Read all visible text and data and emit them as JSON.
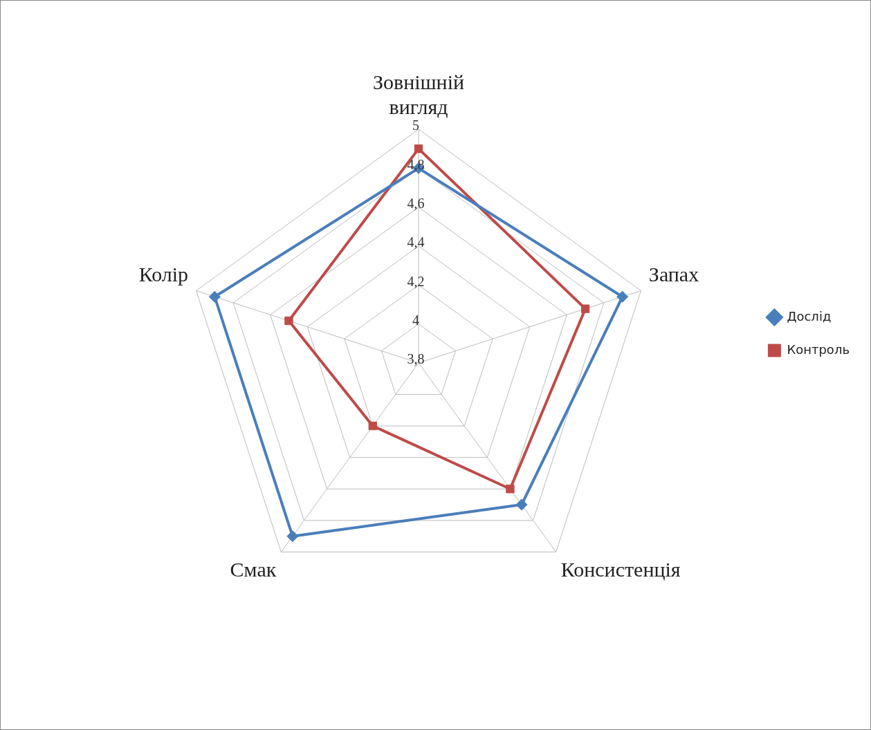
{
  "chart_data": {
    "type": "radar",
    "categories": [
      "Зовнішній вигляд",
      "Запах",
      "Консистенція",
      "Смак",
      "Колір"
    ],
    "series": [
      {
        "name": "Дослід",
        "color": "#4a7ebb",
        "marker": "diamond",
        "values": [
          4.8,
          4.9,
          4.7,
          4.9,
          4.9
        ]
      },
      {
        "name": "Контроль",
        "color": "#be4b48",
        "marker": "square",
        "values": [
          4.9,
          4.7,
          4.6,
          4.2,
          4.5
        ]
      }
    ],
    "ylim": [
      3.8,
      5
    ],
    "yticks": [
      {
        "value": 3.8,
        "label": "3,8"
      },
      {
        "value": 4,
        "label": "4"
      },
      {
        "value": 4.2,
        "label": "4,2"
      },
      {
        "value": 4.4,
        "label": "4,4"
      },
      {
        "value": 4.6,
        "label": "4,6"
      },
      {
        "value": 4.8,
        "label": "4,8"
      },
      {
        "value": 5,
        "label": "5"
      }
    ],
    "grid": true,
    "legend": "right"
  }
}
